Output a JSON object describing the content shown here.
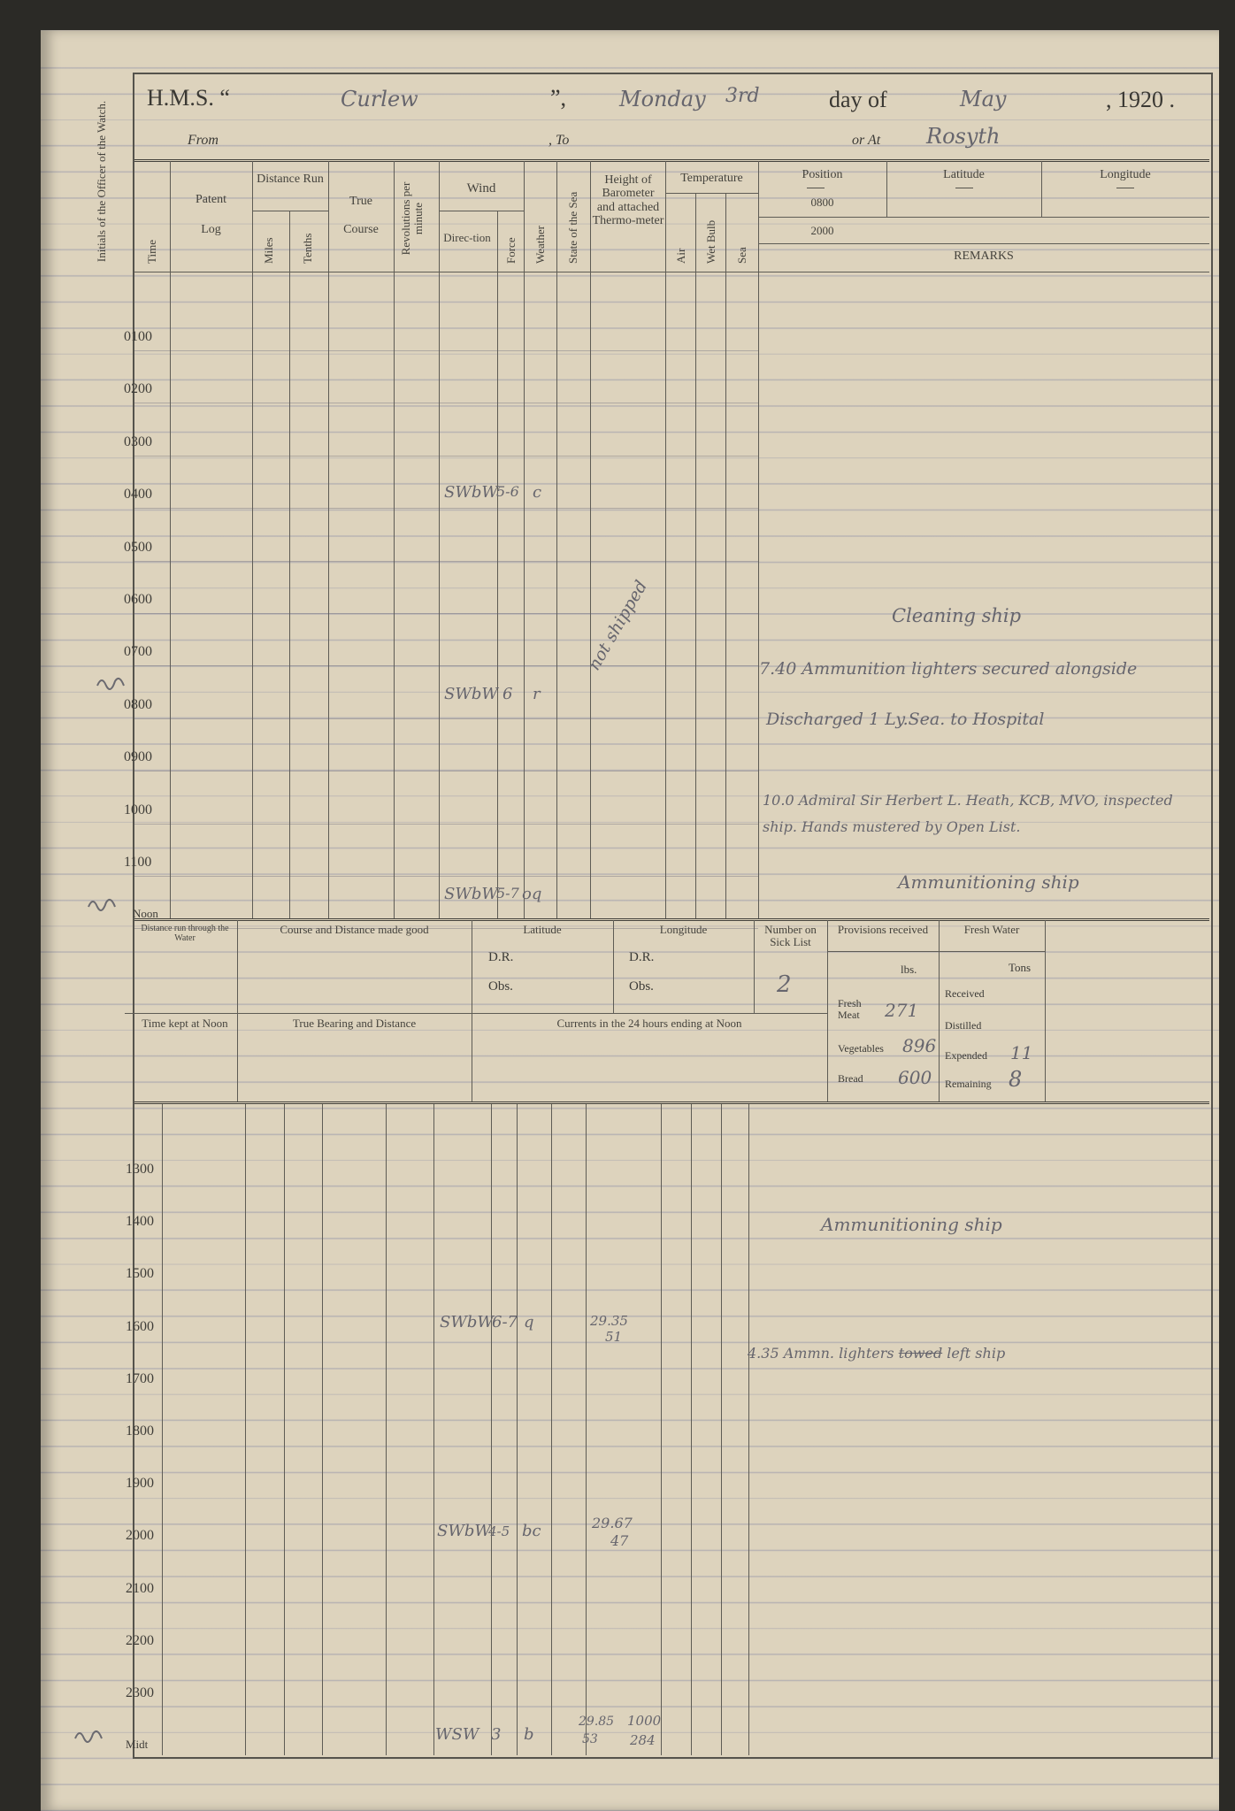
{
  "header": {
    "hms": "H.M.S. “",
    "ship": "Curlew",
    "close_quote": "”,",
    "weekday": "Monday",
    "day": "3rd",
    "day_of": "day of",
    "month": "May",
    "year": ", 1920 .",
    "from": "From",
    "to": ", To",
    "or_at": "or At",
    "place": "Rosyth"
  },
  "side_label": "Initials of the Officer of the Watch.",
  "initials": "(officer's initials)",
  "columns": {
    "time": "Time",
    "patent": "Patent",
    "log": "Log",
    "distance_run": "Distance Run",
    "miles": "Miles",
    "tenths": "Tenths",
    "true": "True",
    "course": "Course",
    "revolutions": "Revolutions per minute",
    "wind": "Wind",
    "direction": "Direc-tion",
    "force": "Force",
    "weather": "Weather",
    "state_of_sea": "State of the Sea",
    "barometer": "Height of Barometer and attached Thermo-meter",
    "temperature": "Temperature",
    "air": "Air",
    "wet_bulb": "Wet Bulb",
    "sea": "Sea",
    "position": "Position",
    "pos_0800": "0800",
    "pos_2000": "2000",
    "latitude": "Latitude",
    "longitude": "Longitude",
    "remarks": "REMARKS"
  },
  "hours_am": [
    "0100",
    "0200",
    "0300",
    "0400",
    "0500",
    "0600",
    "0700",
    "0800",
    "0900",
    "1000",
    "1100",
    "Noon"
  ],
  "hours_pm": [
    "1300",
    "1400",
    "1500",
    "1600",
    "1700",
    "1800",
    "1900",
    "2000",
    "2100",
    "2200",
    "2300",
    "Midt"
  ],
  "entries": {
    "h0400": {
      "dir": "SWbW",
      "force": "5-6",
      "weather": "c"
    },
    "h0800": {
      "dir": "SWbW",
      "force": "6",
      "weather": "r"
    },
    "noon": {
      "dir": "SWbW",
      "force": "5-7",
      "weather": "oq"
    },
    "sea_note": "not shipped",
    "h1600": {
      "dir": "SWbW",
      "force": "6-7",
      "weather": "q",
      "baro": "29.35",
      "thermo": "51"
    },
    "h2000": {
      "dir": "SWbW",
      "force": "4-5",
      "weather": "bc",
      "baro": "29.67",
      "thermo": "47"
    },
    "midt": {
      "dir": "WSW",
      "force": "3",
      "weather": "b",
      "baro": "29.85",
      "thermo": "53",
      "log_a": "1000",
      "log_b": "284"
    }
  },
  "remarks": {
    "r1": "Cleaning ship",
    "r2": "7.40 Ammunition lighters secured alongside",
    "r3": "Discharged 1 Ly.Sea. to Hospital",
    "r4": "10.0 Admiral Sir Herbert L. Heath, KCB, MVO, inspected",
    "r5": "ship. Hands mustered by Open List.",
    "r6": "Ammunitioning ship",
    "r7": "Ammunitioning ship",
    "r8a": "4.35 Ammn. lighters",
    "r8b": "towed",
    "r8c": "left ship"
  },
  "noon_summary": {
    "dist_run": "Distance run through the Water",
    "course_made_good": "Course and Distance made good",
    "latitude": "Latitude",
    "longitude": "Longitude",
    "dr": "D.R.",
    "obs": "Obs.",
    "sick_list": "Number on Sick List",
    "sick_count": "2",
    "time_kept": "Time kept at Noon",
    "true_bearing": "True Bearing and Distance",
    "currents": "Currents in the 24 hours ending at Noon",
    "provisions": "Provisions received",
    "lbs": "lbs.",
    "fresh_meat": "Fresh Meat",
    "fresh_meat_val": "271",
    "vegetables": "Vegetables",
    "vegetables_val": "896",
    "bread": "Bread",
    "bread_val": "600",
    "fresh_water": "Fresh Water",
    "tons": "Tons",
    "received": "Received",
    "distilled": "Distilled",
    "expended": "Expended",
    "expended_val": "11",
    "remaining": "Remaining",
    "remaining_val": "8"
  }
}
